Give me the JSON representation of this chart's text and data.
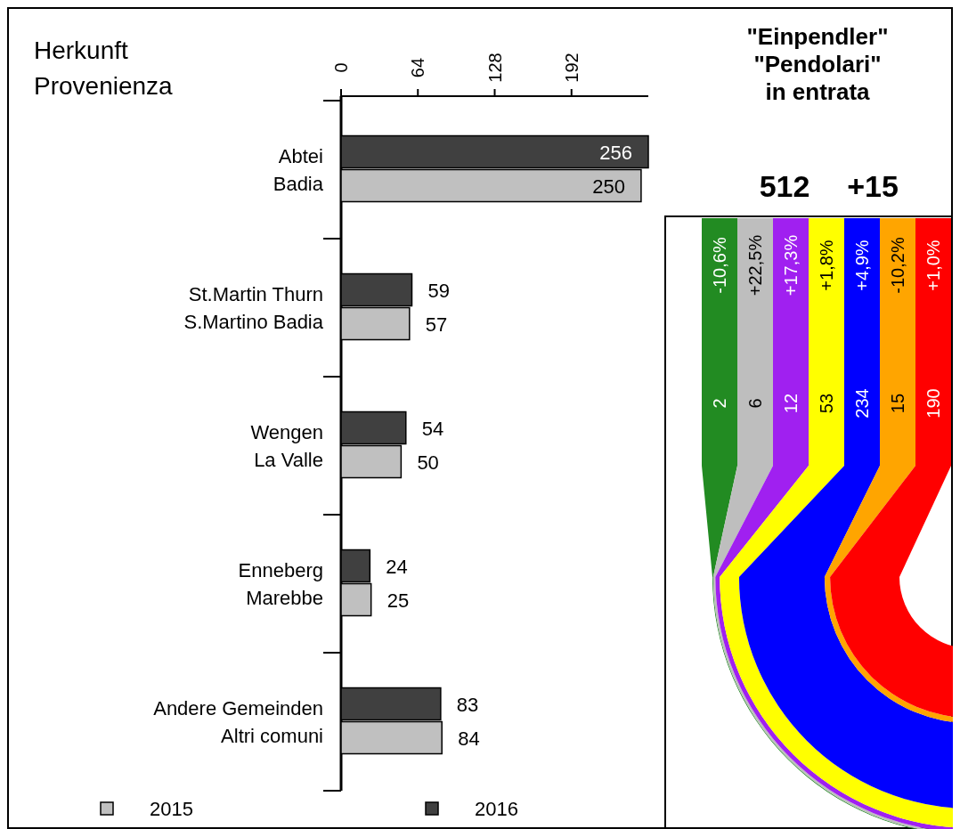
{
  "chart_data": [
    {
      "type": "bar",
      "orientation": "horizontal",
      "title": "Herkunft\nProvenienza",
      "categories": [
        "Abtei\nBadia",
        "St.Martin Thurn\nS.Martino Badia",
        "Wengen\nLa Valle",
        "Enneberg\nMarebbe",
        "Andere Gemeinden\nAltri comuni"
      ],
      "series": [
        {
          "name": "2015",
          "color": "#c0c0c0",
          "values": [
            250,
            57,
            50,
            25,
            84
          ]
        },
        {
          "name": "2016",
          "color": "#404040",
          "values": [
            256,
            59,
            54,
            24,
            83
          ]
        }
      ],
      "xlim": [
        0,
        256
      ],
      "xticks": [
        0,
        64,
        128,
        192
      ],
      "data_labels": true,
      "legend": "bottom",
      "grid": false
    },
    {
      "type": "other",
      "title": "\"Einpendler\"\n\"Pendolari\"\nin entrata",
      "annotations": [
        "512",
        "+15",
        "-10,6%",
        "+22,5%",
        "+17,3%",
        "+1,8%",
        "+4,9%",
        "-10,2%",
        "+1,0%"
      ],
      "categories": [
        null,
        null,
        null,
        null,
        null,
        null,
        null
      ],
      "values": [
        2,
        6,
        12,
        53,
        234,
        15,
        190
      ],
      "data_labels": true,
      "colors": [
        "#228b22",
        "#bebebe",
        "#a020f0",
        "#ffff00",
        "#0000ff",
        "#ffa500",
        "#ff0000"
      ]
    }
  ]
}
